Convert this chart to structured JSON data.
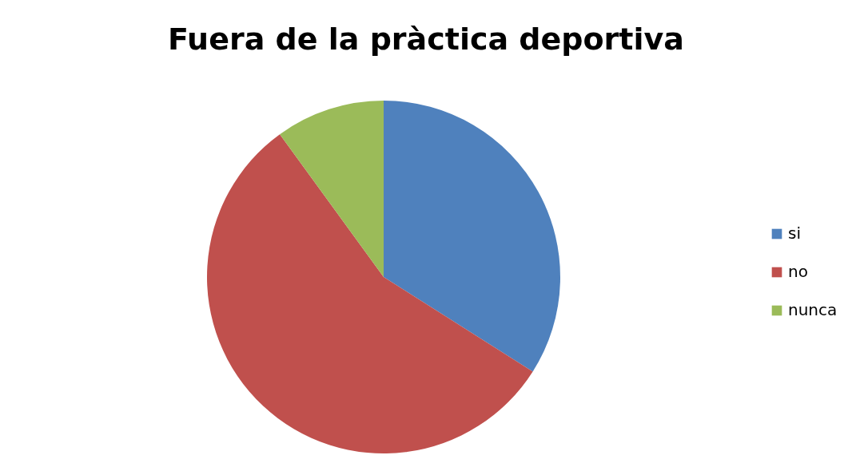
{
  "chart_data": {
    "type": "pie",
    "title": "Fuera de la pràctica deportiva",
    "categories": [
      "si",
      "no",
      "nunca"
    ],
    "values": [
      34,
      56,
      10
    ],
    "colors": [
      "#4f81bd",
      "#c0504d",
      "#9bbb59"
    ],
    "legend": "right"
  }
}
